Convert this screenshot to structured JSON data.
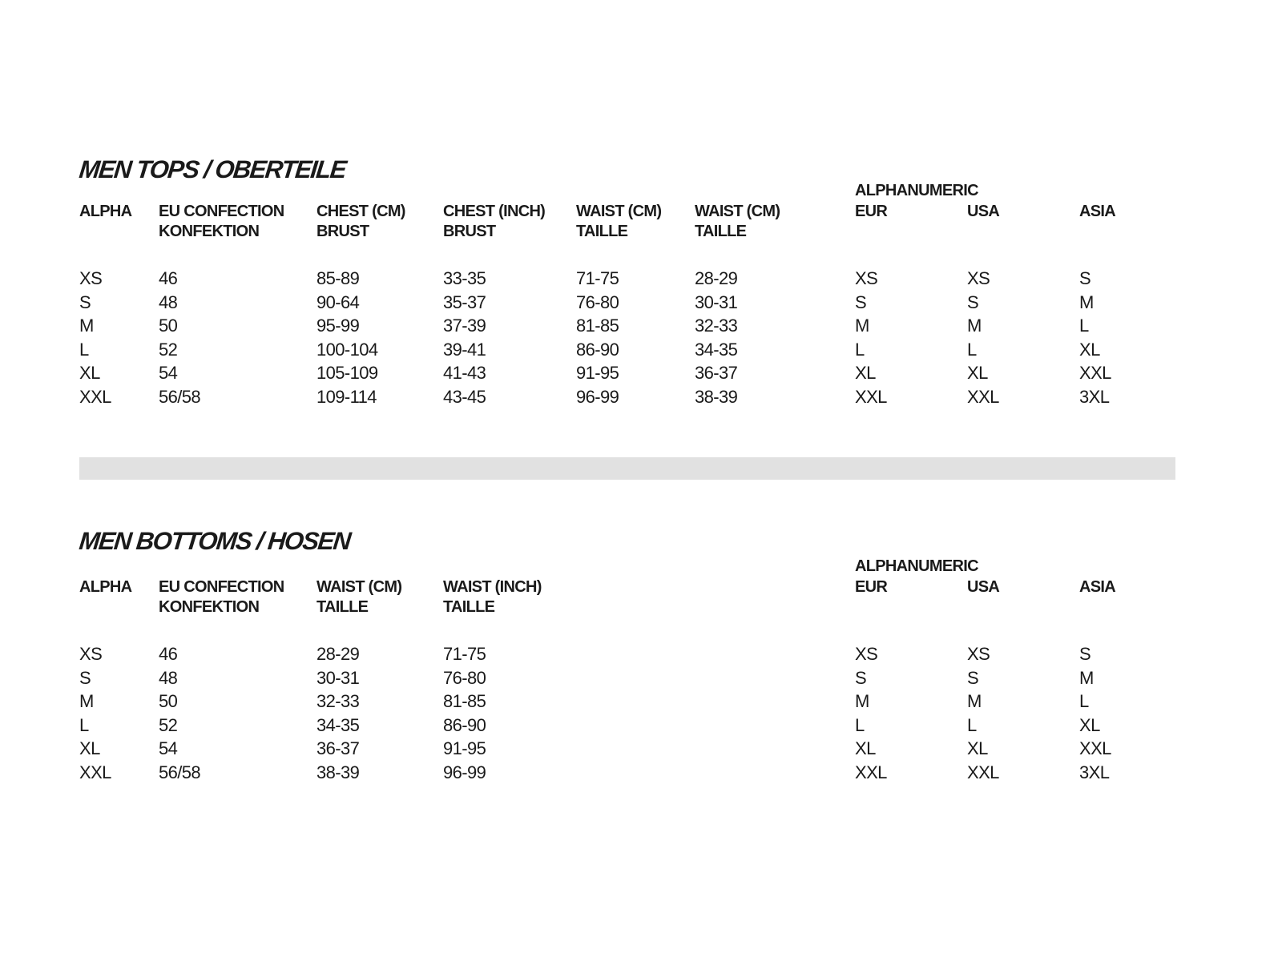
{
  "tops": {
    "title": "MEN TOPS / OBERTEILE",
    "group_label": "ALPHANUMERIC",
    "headers": [
      [
        "ALPHA",
        ""
      ],
      [
        "EU CONFECTION",
        "KONFEKTION"
      ],
      [
        "CHEST (CM)",
        "BRUST"
      ],
      [
        "CHEST (INCH)",
        "BRUST"
      ],
      [
        "WAIST (CM)",
        "TAILLE"
      ],
      [
        "WAIST (CM)",
        "TAILLE"
      ],
      [
        "EUR",
        ""
      ],
      [
        "USA",
        ""
      ],
      [
        "ASIA",
        ""
      ]
    ],
    "rows": [
      [
        "XS",
        "46",
        "85-89",
        "33-35",
        "71-75",
        "28-29",
        "XS",
        "XS",
        "S"
      ],
      [
        "S",
        "48",
        "90-64",
        "35-37",
        "76-80",
        "30-31",
        "S",
        "S",
        "M"
      ],
      [
        "M",
        "50",
        "95-99",
        "37-39",
        "81-85",
        "32-33",
        "M",
        "M",
        "L"
      ],
      [
        "L",
        "52",
        "100-104",
        "39-41",
        "86-90",
        "34-35",
        "L",
        "L",
        "XL"
      ],
      [
        "XL",
        "54",
        "105-109",
        "41-43",
        "91-95",
        "36-37",
        "XL",
        "XL",
        "XXL"
      ],
      [
        "XXL",
        "56/58",
        "109-114",
        "43-45",
        "96-99",
        "38-39",
        "XXL",
        "XXL",
        "3XL"
      ]
    ]
  },
  "bottoms": {
    "title": "MEN BOTTOMS / HOSEN",
    "group_label": "ALPHANUMERIC",
    "headers": [
      [
        "ALPHA",
        ""
      ],
      [
        "EU CONFECTION",
        "KONFEKTION"
      ],
      [
        "WAIST (CM)",
        "TAILLE"
      ],
      [
        "WAIST (INCH)",
        "TAILLE"
      ],
      [
        "EUR",
        ""
      ],
      [
        "USA",
        ""
      ],
      [
        "ASIA",
        ""
      ]
    ],
    "rows": [
      [
        "XS",
        "46",
        "28-29",
        "71-75",
        "XS",
        "XS",
        "S"
      ],
      [
        "S",
        "48",
        "30-31",
        "76-80",
        "S",
        "S",
        "M"
      ],
      [
        "M",
        "50",
        "32-33",
        "81-85",
        "M",
        "M",
        "L"
      ],
      [
        "L",
        "52",
        "34-35",
        "86-90",
        "L",
        "L",
        "XL"
      ],
      [
        "XL",
        "54",
        "36-37",
        "91-95",
        "XL",
        "XL",
        "XXL"
      ],
      [
        "XXL",
        "56/58",
        "38-39",
        "96-99",
        "XXL",
        "XXL",
        "3XL"
      ]
    ]
  },
  "colors": {
    "text": "#1a1a1a",
    "divider": "#e1e1e1"
  }
}
